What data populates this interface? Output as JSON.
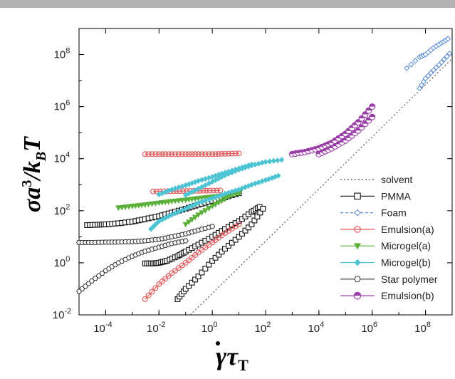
{
  "chart_data": {
    "type": "scatter",
    "xscale": "log",
    "yscale": "log",
    "xlim": [
      1e-05,
      1000000000
    ],
    "ylim": [
      0.01,
      1000000000
    ],
    "xticks": [
      "10-4",
      "10-2",
      "100",
      "102",
      "104",
      "106",
      "108"
    ],
    "yticks": [
      "10-2",
      "100",
      "102",
      "104",
      "106",
      "108"
    ],
    "xlabel": "γ̇τT",
    "ylabel": "σa³/kBT",
    "legend_position": "lower-right",
    "series": [
      {
        "name": "solvent",
        "color": "#555555",
        "marker": "none",
        "line": "dotted",
        "x": [
          0.15,
          1000000000
        ],
        "y": [
          0.01,
          70000000
        ]
      },
      {
        "name": "PMMA",
        "color": "#111111",
        "marker": "square",
        "line": "solid",
        "x": [
          2e-05,
          5e-05,
          0.0001,
          0.0003,
          0.001,
          0.003,
          0.01,
          0.03,
          0.1,
          0.3,
          1,
          3,
          10
        ],
        "y": [
          28,
          29,
          30,
          33,
          38,
          48,
          62,
          85,
          120,
          170,
          240,
          330,
          470
        ]
      },
      {
        "name": "PMMA",
        "color": "#111111",
        "marker": "square",
        "line": "solid",
        "x": [
          0.003,
          0.006,
          0.01,
          0.02,
          0.05,
          0.1,
          0.3,
          1,
          3,
          10,
          30,
          60
        ],
        "y": [
          0.95,
          0.95,
          1.0,
          1.2,
          1.8,
          2.7,
          5,
          10,
          20,
          40,
          90,
          140
        ]
      },
      {
        "name": "PMMA",
        "color": "#111111",
        "marker": "square",
        "line": "solid",
        "x": [
          0.05,
          0.1,
          0.3,
          1,
          3,
          10,
          30,
          80
        ],
        "y": [
          0.04,
          0.1,
          0.3,
          1.2,
          3.5,
          10,
          30,
          120
        ]
      },
      {
        "name": "Foam",
        "color": "#5b8dd6",
        "marker": "diamond-open",
        "line": "dashed",
        "x": [
          20000000,
          60000000,
          100000000,
          200000000,
          400000000,
          700000000
        ],
        "y": [
          30000000,
          80000000,
          100000000,
          180000000,
          280000000,
          400000000
        ]
      },
      {
        "name": "Foam",
        "color": "#5b8dd6",
        "marker": "diamond-open",
        "line": "dashed",
        "x": [
          60000000,
          100000000,
          200000000,
          400000000,
          800000000
        ],
        "y": [
          5000000,
          12000000,
          25000000,
          50000000,
          110000000
        ]
      },
      {
        "name": "Emulsion(a)",
        "color": "#e05555",
        "marker": "circle-open",
        "line": "solid",
        "x": [
          0.003,
          0.01,
          0.03,
          0.1,
          0.3,
          1,
          3,
          10
        ],
        "y": [
          15000,
          15000,
          15000,
          15000,
          15000,
          15000,
          15500,
          16000
        ]
      },
      {
        "name": "Emulsion(a)",
        "color": "#e05555",
        "marker": "circle-open",
        "line": "solid",
        "x": [
          0.006,
          0.02,
          0.06,
          0.2,
          0.6,
          2
        ],
        "y": [
          550,
          560,
          570,
          580,
          590,
          600
        ]
      },
      {
        "name": "Emulsion(a)",
        "color": "#e05555",
        "marker": "circle-open",
        "line": "solid",
        "x": [
          0.003,
          0.01,
          0.03,
          0.1,
          0.3,
          1,
          3,
          10
        ],
        "y": [
          0.04,
          0.15,
          0.4,
          1,
          2.5,
          6,
          14,
          30
        ]
      },
      {
        "name": "Microgel(a)",
        "color": "#5ab03a",
        "marker": "triangle-down",
        "line": "solid",
        "x": [
          0.0003,
          0.001,
          0.003,
          0.01,
          0.03,
          0.1,
          0.3,
          1,
          3,
          10
        ],
        "y": [
          130,
          150,
          170,
          200,
          230,
          260,
          300,
          340,
          390,
          450
        ]
      },
      {
        "name": "Microgel(a)",
        "color": "#5ab03a",
        "marker": "triangle-down",
        "line": "solid",
        "x": [
          0.1,
          0.3,
          1,
          3,
          10
        ],
        "y": [
          30,
          70,
          150,
          280,
          550
        ]
      },
      {
        "name": "Microgel(b)",
        "color": "#4cc4d4",
        "marker": "diamond",
        "line": "solid",
        "x": [
          0.01,
          0.03,
          0.1,
          0.3,
          1,
          3,
          10,
          30
        ],
        "y": [
          420,
          650,
          950,
          1400,
          2000,
          2900,
          4200,
          6000
        ]
      },
      {
        "name": "Microgel(b)",
        "color": "#4cc4d4",
        "marker": "diamond",
        "line": "solid",
        "x": [
          0.005,
          0.01,
          0.03,
          0.1,
          0.3,
          1,
          3,
          10,
          30,
          100,
          300
        ],
        "y": [
          20,
          40,
          70,
          120,
          200,
          300,
          450,
          650,
          1000,
          1500,
          2200
        ]
      },
      {
        "name": "Microgel(b)",
        "color": "#4cc4d4",
        "marker": "diamond",
        "line": "solid",
        "x": [
          0.1,
          0.3,
          1,
          3,
          10,
          30,
          100,
          400
        ],
        "y": [
          400,
          700,
          1300,
          2300,
          3800,
          5500,
          7500,
          9000
        ]
      },
      {
        "name": "Star polymer",
        "color": "#333333",
        "marker": "hexagon-open",
        "line": "solid",
        "x": [
          1e-05,
          3e-05,
          0.0001,
          0.0003,
          0.001,
          0.003,
          0.01,
          0.03,
          0.1,
          0.3,
          1
        ],
        "y": [
          6,
          6,
          6.2,
          6.3,
          6.5,
          7,
          8,
          10,
          13,
          18,
          25
        ]
      },
      {
        "name": "Star polymer",
        "color": "#333333",
        "marker": "hexagon-open",
        "line": "solid",
        "x": [
          1e-05,
          3e-05,
          0.0001,
          0.0003,
          0.001,
          0.003,
          0.01,
          0.03,
          0.1
        ],
        "y": [
          0.08,
          0.2,
          0.5,
          1,
          1.8,
          2.8,
          4,
          5.5,
          7
        ]
      },
      {
        "name": "Emulsion(b)",
        "color": "#9a3fa8",
        "marker": "circle-half",
        "line": "solid",
        "x": [
          1000,
          3000,
          10000,
          30000,
          100000,
          300000,
          1000000
        ],
        "y": [
          15000,
          18000,
          25000,
          40000,
          90000,
          250000,
          1000000
        ]
      },
      {
        "name": "Emulsion(b)",
        "color": "#9a3fa8",
        "marker": "circle-half",
        "line": "solid",
        "x": [
          10000,
          30000,
          100000,
          300000,
          1000000
        ],
        "y": [
          15000,
          25000,
          50000,
          120000,
          400000
        ]
      }
    ],
    "legend": [
      "solvent",
      "PMMA",
      "Foam",
      "Emulsion(a)",
      "Microgel(a)",
      "Microgel(b)",
      "Star polymer",
      "Emulsion(b)"
    ]
  }
}
